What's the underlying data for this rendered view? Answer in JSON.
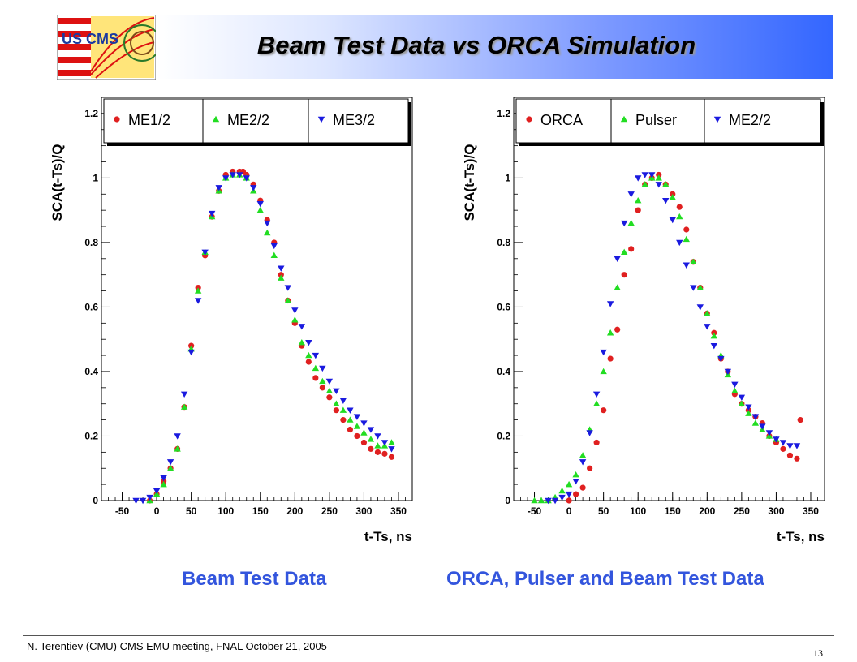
{
  "slide": {
    "title": "Beam Test Data vs ORCA Simulation",
    "logo_text": "US CMS",
    "caption_left": "Beam Test Data",
    "caption_right": "ORCA, Pulser  and Beam Test Data",
    "footer": "N. Terentiev  (CMU)  CMS EMU meeting,  FNAL  October 21, 2005",
    "page_number": "13"
  },
  "colors": {
    "red": "#e02020",
    "green": "#22dd22",
    "blue": "#1a1adf",
    "caption": "#3355dd",
    "header_band_end": "#3366ff"
  },
  "chart_data": [
    {
      "type": "scatter",
      "title": "",
      "xlabel": "t-Ts, ns",
      "ylabel": "SCA(t-Ts)/Q",
      "xlim": [
        -80,
        370
      ],
      "ylim": [
        0,
        1.25
      ],
      "xticks": [
        -50,
        0,
        50,
        100,
        150,
        200,
        250,
        300,
        350
      ],
      "yticks": [
        0,
        0.2,
        0.4,
        0.6,
        0.8,
        1,
        1.2
      ],
      "grid": false,
      "legend": "top",
      "series": [
        {
          "name": "ME1/2",
          "marker": "circle",
          "color": "red",
          "x": [
            -10,
            0,
            10,
            20,
            30,
            40,
            50,
            60,
            70,
            80,
            90,
            100,
            110,
            120,
            125,
            130,
            140,
            150,
            160,
            170,
            180,
            190,
            200,
            210,
            220,
            230,
            240,
            250,
            260,
            270,
            280,
            290,
            300,
            310,
            320,
            330,
            340
          ],
          "y": [
            0.0,
            0.02,
            0.06,
            0.1,
            0.16,
            0.29,
            0.48,
            0.66,
            0.76,
            0.88,
            0.96,
            1.01,
            1.02,
            1.02,
            1.02,
            1.01,
            0.98,
            0.93,
            0.87,
            0.8,
            0.7,
            0.62,
            0.55,
            0.48,
            0.43,
            0.38,
            0.35,
            0.32,
            0.28,
            0.25,
            0.22,
            0.2,
            0.18,
            0.16,
            0.15,
            0.145,
            0.135
          ]
        },
        {
          "name": "ME2/2",
          "marker": "triangle-up",
          "color": "green",
          "x": [
            -10,
            0,
            10,
            20,
            30,
            40,
            50,
            60,
            70,
            80,
            90,
            100,
            110,
            120,
            130,
            140,
            150,
            160,
            170,
            180,
            190,
            200,
            210,
            220,
            230,
            240,
            250,
            260,
            270,
            280,
            290,
            300,
            310,
            320,
            330,
            340
          ],
          "y": [
            0.0,
            0.02,
            0.05,
            0.1,
            0.16,
            0.29,
            0.47,
            0.65,
            0.77,
            0.88,
            0.96,
            1.0,
            1.01,
            1.01,
            1.0,
            0.96,
            0.9,
            0.83,
            0.76,
            0.69,
            0.62,
            0.56,
            0.49,
            0.45,
            0.41,
            0.37,
            0.34,
            0.3,
            0.28,
            0.25,
            0.23,
            0.21,
            0.19,
            0.17,
            0.17,
            0.18
          ]
        },
        {
          "name": "ME3/2",
          "marker": "triangle-down",
          "color": "blue",
          "x": [
            -30,
            -20,
            -10,
            0,
            10,
            20,
            30,
            40,
            50,
            60,
            70,
            80,
            90,
            100,
            110,
            120,
            130,
            140,
            150,
            160,
            170,
            180,
            190,
            200,
            210,
            220,
            230,
            240,
            250,
            260,
            270,
            280,
            290,
            300,
            310,
            320,
            330,
            340
          ],
          "y": [
            0.0,
            0.0,
            0.01,
            0.03,
            0.07,
            0.12,
            0.2,
            0.33,
            0.46,
            0.62,
            0.77,
            0.89,
            0.97,
            1.0,
            1.01,
            1.01,
            1.0,
            0.97,
            0.92,
            0.86,
            0.79,
            0.72,
            0.66,
            0.59,
            0.54,
            0.49,
            0.45,
            0.41,
            0.37,
            0.34,
            0.31,
            0.28,
            0.26,
            0.24,
            0.22,
            0.2,
            0.18,
            0.16
          ]
        }
      ]
    },
    {
      "type": "scatter",
      "title": "",
      "xlabel": "t-Ts, ns",
      "ylabel": "SCA(t-Ts)/Q",
      "xlim": [
        -80,
        370
      ],
      "ylim": [
        0,
        1.25
      ],
      "xticks": [
        -50,
        0,
        50,
        100,
        150,
        200,
        250,
        300,
        350
      ],
      "yticks": [
        0,
        0.2,
        0.4,
        0.6,
        0.8,
        1,
        1.2
      ],
      "grid": false,
      "legend": "top",
      "series": [
        {
          "name": "ORCA",
          "marker": "circle",
          "color": "red",
          "x": [
            0,
            10,
            20,
            30,
            40,
            50,
            60,
            70,
            80,
            90,
            100,
            110,
            120,
            130,
            140,
            150,
            160,
            170,
            180,
            190,
            200,
            210,
            220,
            230,
            240,
            250,
            260,
            270,
            280,
            290,
            300,
            310,
            320,
            330,
            335
          ],
          "y": [
            0.0,
            0.02,
            0.04,
            0.1,
            0.18,
            0.28,
            0.44,
            0.53,
            0.7,
            0.78,
            0.9,
            0.98,
            1.0,
            1.01,
            0.98,
            0.95,
            0.91,
            0.84,
            0.74,
            0.66,
            0.58,
            0.52,
            0.44,
            0.4,
            0.33,
            0.3,
            0.28,
            0.26,
            0.24,
            0.2,
            0.18,
            0.16,
            0.14,
            0.13,
            0.25
          ]
        },
        {
          "name": "Pulser",
          "marker": "triangle-up",
          "color": "green",
          "x": [
            -50,
            -40,
            -30,
            -20,
            -10,
            0,
            10,
            20,
            30,
            40,
            50,
            60,
            70,
            80,
            90,
            100,
            110,
            120,
            130,
            140,
            150,
            160,
            170,
            180,
            190,
            200,
            210,
            220,
            230,
            240,
            250,
            260,
            270,
            280,
            290,
            300
          ],
          "y": [
            0.0,
            0.0,
            0.0,
            0.01,
            0.03,
            0.05,
            0.08,
            0.14,
            0.22,
            0.3,
            0.4,
            0.52,
            0.66,
            0.77,
            0.86,
            0.93,
            0.98,
            1.0,
            1.0,
            0.98,
            0.94,
            0.88,
            0.81,
            0.74,
            0.66,
            0.58,
            0.51,
            0.45,
            0.39,
            0.34,
            0.3,
            0.27,
            0.24,
            0.22,
            0.2,
            0.19
          ]
        },
        {
          "name": "ME2/2",
          "marker": "triangle-down",
          "color": "blue",
          "x": [
            -30,
            -20,
            -10,
            0,
            10,
            20,
            30,
            40,
            50,
            60,
            70,
            80,
            90,
            100,
            110,
            120,
            130,
            140,
            150,
            160,
            170,
            180,
            190,
            200,
            210,
            220,
            230,
            240,
            250,
            260,
            270,
            280,
            290,
            300,
            310,
            320,
            330
          ],
          "y": [
            0.0,
            0.0,
            0.01,
            0.02,
            0.06,
            0.12,
            0.21,
            0.33,
            0.46,
            0.61,
            0.75,
            0.86,
            0.95,
            1.0,
            1.01,
            1.01,
            0.98,
            0.93,
            0.87,
            0.8,
            0.73,
            0.66,
            0.6,
            0.54,
            0.48,
            0.44,
            0.4,
            0.36,
            0.32,
            0.29,
            0.26,
            0.23,
            0.21,
            0.19,
            0.18,
            0.17,
            0.17
          ]
        }
      ]
    }
  ]
}
